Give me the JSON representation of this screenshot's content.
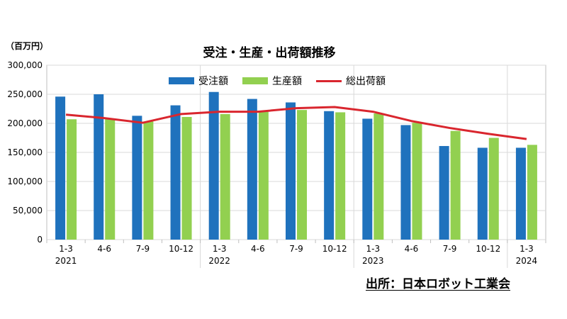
{
  "chart_data": {
    "type": "bar",
    "title": "受注・生産・出荷額推移",
    "unit_label": "（百万円）",
    "source": "出所：日本ロボット工業会",
    "categories": [
      "1-3",
      "4-6",
      "7-9",
      "10-12",
      "1-3",
      "4-6",
      "7-9",
      "10-12",
      "1-3",
      "4-6",
      "7-9",
      "10-12",
      "1-3"
    ],
    "years": [
      "2021",
      "",
      "",
      "",
      "2022",
      "",
      "",
      "",
      "2023",
      "",
      "",
      "",
      "2024"
    ],
    "ylim": [
      0,
      300000
    ],
    "yticks": [
      "0",
      "50,000",
      "100,000",
      "150,000",
      "200,000",
      "250,000",
      "300,000"
    ],
    "grid": true,
    "legend_position": "top-center",
    "series": [
      {
        "name": "受注額",
        "type": "bar",
        "color": "#1f72bd",
        "values": [
          246000,
          250000,
          213000,
          231000,
          254000,
          242000,
          236000,
          221000,
          208000,
          197000,
          161000,
          158000,
          158000
        ]
      },
      {
        "name": "生産額",
        "type": "bar",
        "color": "#92d050",
        "values": [
          207000,
          208000,
          203000,
          211000,
          216000,
          220000,
          223000,
          219000,
          217000,
          201000,
          187000,
          175000,
          163000
        ]
      },
      {
        "name": "総出荷額",
        "type": "line",
        "color": "#d9262e",
        "values": [
          215000,
          209000,
          201000,
          216000,
          220000,
          220000,
          226000,
          228000,
          220000,
          204000,
          192000,
          182000,
          173000
        ]
      }
    ]
  }
}
